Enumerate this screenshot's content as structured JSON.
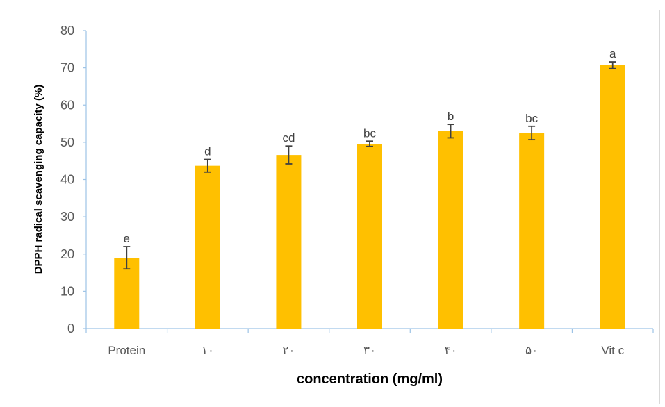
{
  "chart_data": {
    "type": "bar",
    "title": "",
    "xlabel": "concentration (mg/ml)",
    "ylabel": "DPPH radical scavenging capacity (%)",
    "categories": [
      "Protein",
      "١٠",
      "٢٠",
      "٣٠",
      "۴٠",
      "۵٠",
      "Vit c"
    ],
    "values": [
      19,
      43.7,
      46.6,
      49.6,
      53,
      52.5,
      70.7
    ],
    "error": [
      3,
      1.7,
      2.4,
      0.7,
      1.8,
      1.8,
      0.9
    ],
    "data_labels": [
      "e",
      "d",
      "cd",
      "bc",
      "b",
      "bc",
      "a"
    ],
    "ylim": [
      0,
      80
    ],
    "yticks": [
      0,
      10,
      20,
      30,
      40,
      50,
      60,
      70,
      80
    ],
    "grid": false,
    "legend": "none",
    "bar_color": "#ffc000",
    "error_bar_color": "#404040",
    "axis_color": "#9dc3e6"
  }
}
